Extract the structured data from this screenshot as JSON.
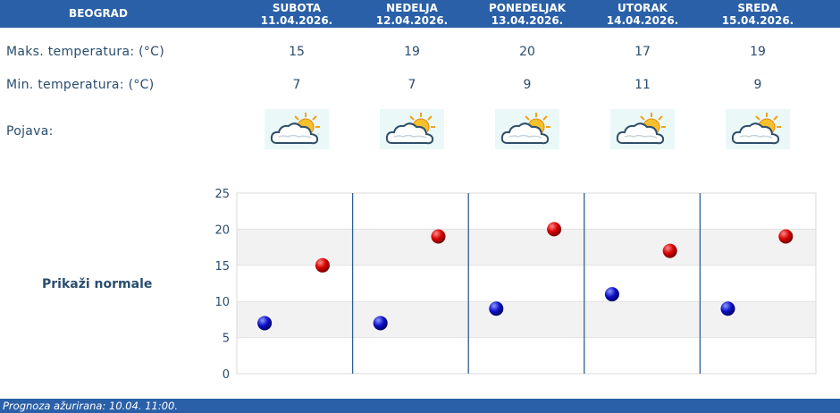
{
  "header": {
    "city": "BEOGRAD",
    "days": [
      {
        "name": "SUBOTA",
        "date": "11.04.2026."
      },
      {
        "name": "NEDELJA",
        "date": "12.04.2026."
      },
      {
        "name": "PONEDELJAK",
        "date": "13.04.2026."
      },
      {
        "name": "UTORAK",
        "date": "14.04.2026."
      },
      {
        "name": "SREDA",
        "date": "15.04.2026."
      }
    ]
  },
  "rows": {
    "max_label": "Maks. temperatura: (°C)",
    "min_label": "Min. temperatura: (°C)",
    "wx_label": "Pojava:",
    "max": [
      "15",
      "19",
      "20",
      "17",
      "19"
    ],
    "min": [
      "7",
      "7",
      "9",
      "11",
      "9"
    ],
    "weather_icons": [
      "partly-cloudy-icon",
      "partly-cloudy-icon",
      "partly-cloudy-icon",
      "partly-cloudy-icon",
      "partly-cloudy-icon"
    ]
  },
  "normals_link": "Prikaži normale",
  "colors": {
    "max": "#cc0000",
    "min": "#0000aa",
    "bar": "#2a60a8"
  },
  "chart_data": {
    "type": "scatter",
    "ylim": [
      0,
      25
    ],
    "yticks": [
      "0",
      "5",
      "10",
      "15",
      "20",
      "25"
    ],
    "series": [
      {
        "values": [
          15,
          19,
          20,
          17,
          19
        ]
      },
      {
        "values": [
          7,
          7,
          9,
          11,
          9
        ]
      }
    ]
  },
  "footer": {
    "text": "Prognoza ažurirana:  10.04. 11:00."
  }
}
